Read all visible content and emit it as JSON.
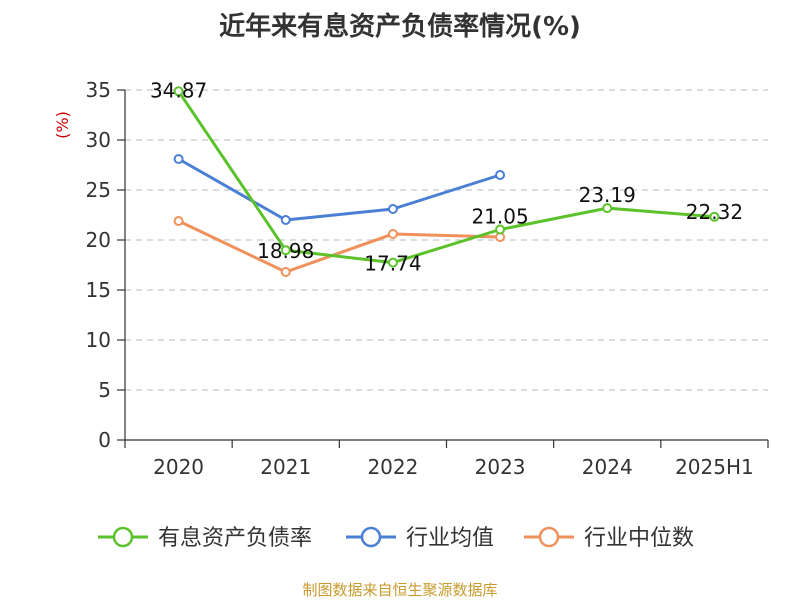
{
  "chart_data": {
    "type": "line",
    "title": "近年来有息资产负债率情况(%)",
    "ylabel": "(%)",
    "xlabel": "",
    "categories": [
      "2020",
      "2021",
      "2022",
      "2023",
      "2024",
      "2025H1"
    ],
    "ylim": [
      0,
      35
    ],
    "yticks": [
      0,
      5,
      10,
      15,
      20,
      25,
      30,
      35
    ],
    "grid": "horizontal-dashed",
    "legend_position": "bottom",
    "series": [
      {
        "name": "有息资产负债率",
        "color": "#5cc22b",
        "values": [
          34.87,
          18.98,
          17.74,
          21.05,
          23.19,
          22.32
        ],
        "labels": [
          "34.87",
          "18.98",
          "17.74",
          "21.05",
          "23.19",
          "22.32"
        ]
      },
      {
        "name": "行业均值",
        "color": "#4a7fd6",
        "values": [
          28.1,
          22.0,
          23.1,
          26.5,
          null,
          null
        ]
      },
      {
        "name": "行业中位数",
        "color": "#f0905a",
        "values": [
          21.9,
          16.8,
          20.6,
          20.3,
          null,
          null
        ]
      }
    ]
  },
  "source": "制图数据来自恒生聚源数据库"
}
